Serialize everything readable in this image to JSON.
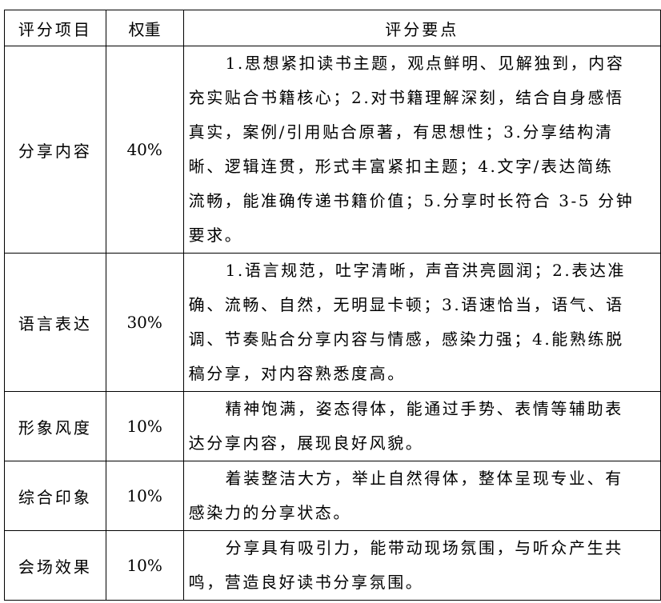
{
  "table": {
    "headers": [
      "评分项目",
      "权重",
      "评分要点"
    ],
    "rows": [
      {
        "item": "分享内容",
        "weight": "40%",
        "lines": [
          "1.思想紧扣读书主题，观点鲜明、见解独到，内容",
          "充实贴合书籍核心；2.对书籍理解深刻，结合自身感悟",
          "真实，案例/引用贴合原著，有思想性；3.分享结构清",
          "晰、逻辑连贯，形式丰富紧扣主题；4.文字/表达简练",
          "流畅，能准确传递书籍价值；5.分享时长符合 3-5 分钟",
          "要求。"
        ]
      },
      {
        "item": "语言表达",
        "weight": "30%",
        "lines": [
          "1.语言规范，吐字清晰，声音洪亮圆润；2.表达准",
          "确、流畅、自然，无明显卡顿；3.语速恰当，语气、语",
          "调、节奏贴合分享内容与情感，感染力强；4.能熟练脱",
          "稿分享，对内容熟悉度高。"
        ]
      },
      {
        "item": "形象风度",
        "weight": "10%",
        "lines": [
          "精神饱满，姿态得体，能通过手势、表情等辅助表",
          "达分享内容，展现良好风貌。"
        ]
      },
      {
        "item": "综合印象",
        "weight": "10%",
        "lines": [
          "着装整洁大方，举止自然得体，整体呈现专业、有",
          "感染力的分享状态。"
        ]
      },
      {
        "item": "会场效果",
        "weight": "10%",
        "lines": [
          "分享具有吸引力，能带动现场氛围，与听众产生共",
          "鸣，营造良好读书分享氛围。"
        ]
      }
    ]
  }
}
